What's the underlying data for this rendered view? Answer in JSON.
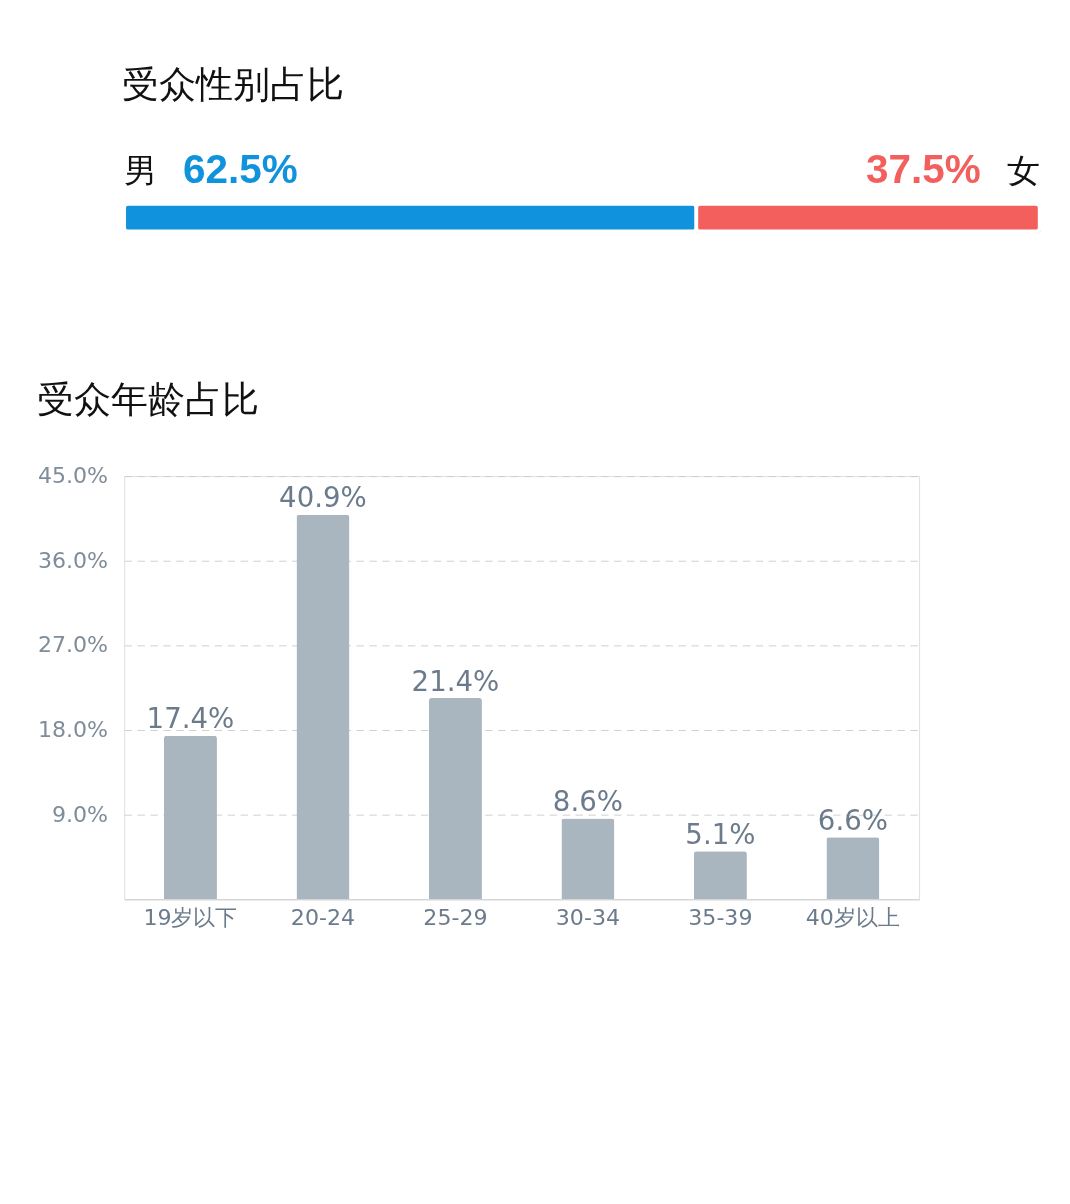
{
  "chart_data": [
    {
      "type": "bar",
      "title": "受众性别占比",
      "orientation": "horizontal",
      "stacked": true,
      "categories": [
        null
      ],
      "tick_labels": false,
      "series": [
        {
          "name": "男",
          "color": "#1192dc",
          "values": [
            62.5
          ],
          "value_labels": [
            "62.5%"
          ]
        },
        {
          "name": "女",
          "color": "#f25f5c",
          "values": [
            37.5
          ],
          "value_labels": [
            "37.5%"
          ]
        }
      ]
    },
    {
      "type": "bar",
      "title": "受众年龄占比",
      "categories": [
        "19岁以下",
        "20-24",
        "25-29",
        "30-34",
        "35-39",
        "40岁以上"
      ],
      "color": "#a9b5bf",
      "values": [
        17.4,
        40.9,
        21.4,
        8.6,
        5.1,
        6.6
      ],
      "value_labels": [
        "17.4%",
        "40.9%",
        "21.4%",
        "8.6%",
        "5.1%",
        "6.6%"
      ],
      "ylim": [
        0,
        45
      ],
      "grid": "y",
      "yticks": [
        {
          "value": 9,
          "label": "9.0%"
        },
        {
          "value": 18,
          "label": "18.0%"
        },
        {
          "value": 27,
          "label": "27.0%"
        },
        {
          "value": 36,
          "label": "36.0%"
        },
        {
          "value": 45,
          "label": "45.0%"
        }
      ]
    }
  ]
}
